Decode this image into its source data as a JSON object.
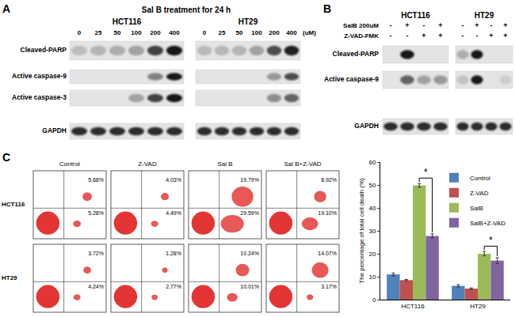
{
  "panels": {
    "A": {
      "label": "A",
      "title": "Sal B treatment for 24 h",
      "unit": "(uM)",
      "row_names": [
        "Cleaved-PARP",
        "Active caspase-9",
        "Active caspase-3",
        "GAPDH"
      ],
      "blots": [
        {
          "cell_line": "HCT116",
          "lanes": [
            "0",
            "25",
            "50",
            "100",
            "200",
            "400"
          ],
          "bands": [
            [
              0.18,
              0.22,
              0.25,
              0.3,
              0.75,
              0.95
            ],
            [
              0,
              0,
              0,
              0,
              0.45,
              0.95
            ],
            [
              0,
              0,
              0,
              0.3,
              0.75,
              0.95
            ],
            [
              0.85,
              0.85,
              0.85,
              0.85,
              0.85,
              0.85
            ]
          ]
        },
        {
          "cell_line": "HT29",
          "lanes": [
            "0",
            "25",
            "50",
            "100",
            "200",
            "400"
          ],
          "bands": [
            [
              0.2,
              0.2,
              0.22,
              0.3,
              0.7,
              0.9
            ],
            [
              0,
              0,
              0,
              0,
              0.35,
              0.7
            ],
            [
              0,
              0,
              0,
              0,
              0.4,
              0.6
            ],
            [
              0.85,
              0.85,
              0.85,
              0.85,
              0.85,
              0.85
            ]
          ]
        }
      ]
    },
    "B": {
      "label": "B",
      "conditions": [
        {
          "name": "SalB 200uM",
          "signs": [
            "-",
            "+",
            "-",
            "+"
          ]
        },
        {
          "name": "Z-VAD-FMK",
          "signs": [
            "-",
            "-",
            "+",
            "+"
          ]
        }
      ],
      "row_names": [
        "Cleaved-PARP",
        "Active caspase-9",
        "GAPDH"
      ],
      "blots": [
        {
          "cell_line": "HCT116",
          "bands": [
            [
              0,
              0.95,
              0,
              0
            ],
            [
              0,
              0.6,
              0.3,
              0.35
            ],
            [
              0.85,
              0.85,
              0.85,
              0.85
            ]
          ]
        },
        {
          "cell_line": "HT29",
          "bands": [
            [
              0.25,
              0.95,
              0,
              0
            ],
            [
              0.15,
              0.95,
              0,
              0.1
            ],
            [
              0.85,
              0.85,
              0.85,
              0.85
            ]
          ]
        }
      ]
    },
    "C": {
      "label": "C",
      "columns": [
        "Control",
        "Z-VAD",
        "Sal B",
        "Sal B+Z-VAD"
      ],
      "rows": [
        {
          "cell_line": "HCT116",
          "plots": [
            {
              "upper_right": {
                "value": 5.68,
                "label": "5.68%"
              },
              "lower_right": {
                "value": 5.28,
                "label": "5.28%"
              }
            },
            {
              "upper_right": {
                "value": 4.03,
                "label": "4.03%"
              },
              "lower_right": {
                "value": 4.49,
                "label": "4.49%"
              }
            },
            {
              "upper_right": {
                "value": 19.79,
                "label": "19.79%"
              },
              "lower_right": {
                "value": 29.59,
                "label": "29.59%"
              }
            },
            {
              "upper_right": {
                "value": 8.92,
                "label": "8.92%"
              },
              "lower_right": {
                "value": 19.1,
                "label": "19.10%"
              }
            }
          ]
        },
        {
          "cell_line": "HT29",
          "plots": [
            {
              "upper_right": {
                "value": 3.72,
                "label": "3.72%"
              },
              "lower_right": {
                "value": 4.24,
                "label": "4.24%"
              }
            },
            {
              "upper_right": {
                "value": 1.28,
                "label": "1.28%"
              },
              "lower_right": {
                "value": 2.77,
                "label": "2.77%"
              }
            },
            {
              "upper_right": {
                "value": 10.24,
                "label": "10.24%"
              },
              "lower_right": {
                "value": 10.01,
                "label": "10.01%"
              }
            },
            {
              "upper_right": {
                "value": 14.07,
                "label": "14.07%"
              },
              "lower_right": {
                "value": 3.17,
                "label": "3.17%"
              }
            }
          ]
        }
      ]
    }
  },
  "chart_data": {
    "type": "bar",
    "categories": [
      "HCT116",
      "HT29"
    ],
    "series": [
      {
        "name": "Control",
        "color": "#4F81BD",
        "values": [
          11,
          6
        ],
        "error": [
          0.6,
          0.5
        ]
      },
      {
        "name": "Z-VAD",
        "color": "#C0504D",
        "values": [
          8.5,
          4.8
        ],
        "error": [
          0.3,
          0.3
        ]
      },
      {
        "name": "SalB",
        "color": "#9BBB59",
        "values": [
          49.8,
          20
        ],
        "error": [
          0.8,
          0.9
        ]
      },
      {
        "name": "SalB+Z-VAD",
        "color": "#8064A2",
        "values": [
          27.8,
          17
        ],
        "error": [
          0.9,
          1.3
        ]
      }
    ],
    "ylabel": "The percentage of total cell death (%)",
    "ylim": [
      0,
      60
    ],
    "yticks": [
      0,
      10,
      20,
      30,
      40,
      50,
      60
    ],
    "grid": false,
    "legend": "right",
    "annotations": [
      {
        "text": "*",
        "category": "HCT116",
        "between": [
          "SalB",
          "SalB+Z-VAD"
        ]
      },
      {
        "text": "*",
        "category": "HT29",
        "between": [
          "SalB",
          "SalB+Z-VAD"
        ]
      }
    ]
  }
}
